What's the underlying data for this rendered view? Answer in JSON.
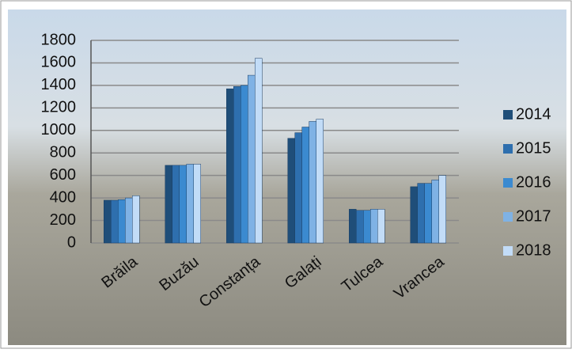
{
  "chart_data": {
    "type": "bar",
    "categories": [
      "Brăila",
      "Buzău",
      "Constanța",
      "Galați",
      "Tulcea",
      "Vrancea"
    ],
    "series": [
      {
        "name": "2014",
        "color": "#1f4e79",
        "values": [
          380,
          690,
          1370,
          930,
          300,
          500
        ]
      },
      {
        "name": "2015",
        "color": "#2e6fae",
        "values": [
          380,
          690,
          1390,
          980,
          290,
          530
        ]
      },
      {
        "name": "2016",
        "color": "#3b8ad0",
        "values": [
          385,
          690,
          1400,
          1030,
          290,
          530
        ]
      },
      {
        "name": "2017",
        "color": "#7fb2e5",
        "values": [
          400,
          700,
          1490,
          1080,
          300,
          560
        ]
      },
      {
        "name": "2018",
        "color": "#c2dcf7",
        "values": [
          420,
          700,
          1640,
          1100,
          300,
          600
        ]
      }
    ],
    "ylim": [
      0,
      1800
    ],
    "yticks": [
      0,
      200,
      400,
      600,
      800,
      1000,
      1200,
      1400,
      1600,
      1800
    ],
    "grid": true,
    "legend": "right"
  }
}
